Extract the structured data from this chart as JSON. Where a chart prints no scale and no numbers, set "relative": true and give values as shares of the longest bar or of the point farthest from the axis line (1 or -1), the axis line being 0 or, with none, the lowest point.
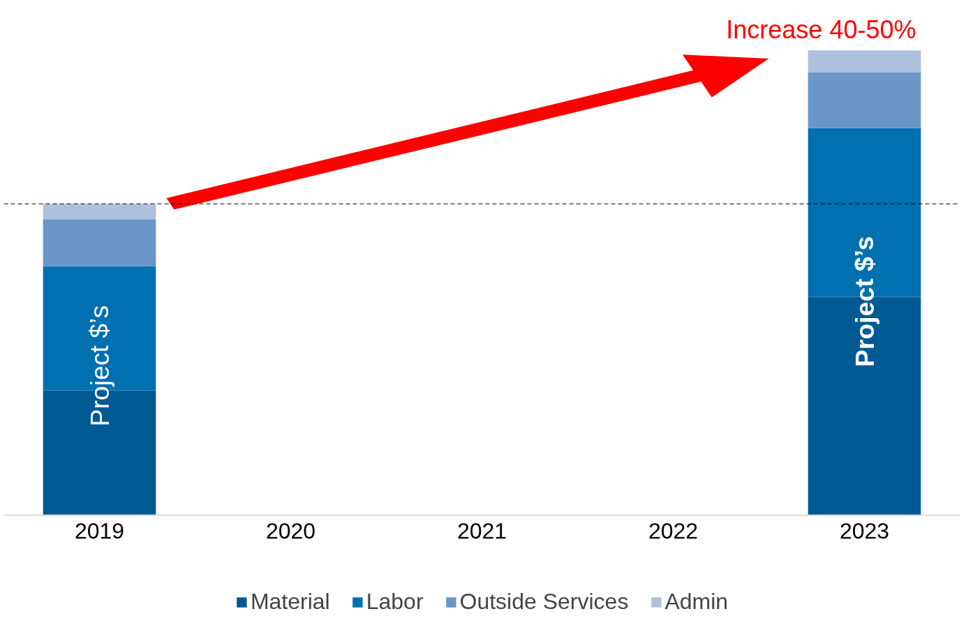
{
  "chart_data": {
    "type": "bar",
    "stacked": true,
    "relative": true,
    "categories": [
      "2019",
      "2020",
      "2021",
      "2022",
      "2023"
    ],
    "series": [
      {
        "name": "Material",
        "color": "#005a94",
        "values": [
          0.269,
          null,
          null,
          null,
          0.47
        ]
      },
      {
        "name": "Labor",
        "color": "#0070b0",
        "values": [
          0.267,
          null,
          null,
          null,
          0.363
        ]
      },
      {
        "name": "Outside Services",
        "color": "#6b96c8",
        "values": [
          0.101,
          null,
          null,
          null,
          0.12
        ]
      },
      {
        "name": "Admin",
        "color": "#adc0de",
        "values": [
          0.033,
          null,
          null,
          null,
          0.047
        ]
      }
    ],
    "annotations": [
      "Increase 40-50%",
      "Project $’s",
      "Project $’s"
    ],
    "ref_lines": [
      {
        "axis": "y",
        "value": 0.67,
        "label": null,
        "color": "#000000",
        "line_style": "dashed"
      }
    ],
    "legend": "bottom",
    "grid": false,
    "tick_labels": "x"
  }
}
